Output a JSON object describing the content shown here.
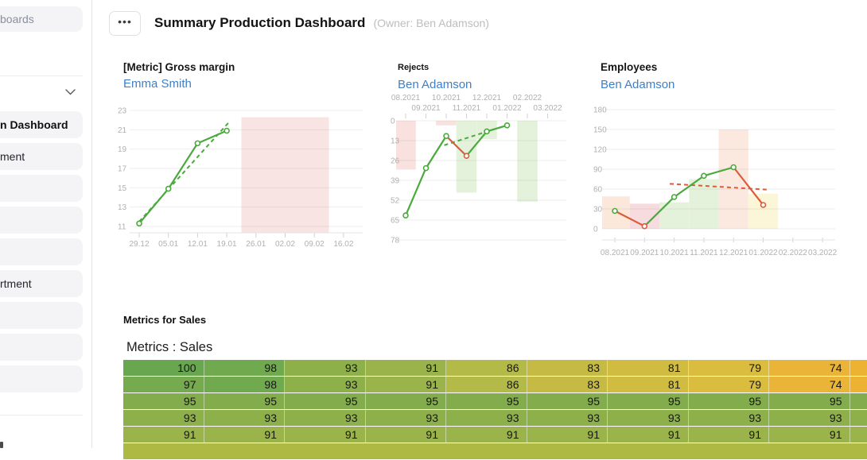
{
  "colors": {
    "accent_blue": "#3f7fc6",
    "line_green": "#4aaa3c",
    "line_red": "#dc5b3a",
    "grid": "#ebebeb",
    "axis_label": "#b0b0b0",
    "axis_line": "#e3e3e3"
  },
  "sidebar": {
    "search_label": "boards",
    "items": [
      {
        "label": "n Dashboard",
        "selected": true
      },
      {
        "label": "ment",
        "selected": false
      },
      {
        "label": "",
        "selected": false
      },
      {
        "label": "",
        "selected": false
      },
      {
        "label": "",
        "selected": false
      },
      {
        "label": "rtment",
        "selected": false
      },
      {
        "label": "",
        "selected": false
      },
      {
        "label": "",
        "selected": false
      },
      {
        "label": "",
        "selected": false
      }
    ]
  },
  "header": {
    "menu_button": "•••",
    "title": "Summary Production Dashboard",
    "owner": "(Owner: Ben Adamson)"
  },
  "chart_data": [
    {
      "type": "line",
      "title": "[Metric] Gross margin",
      "owner": "Emma Smith",
      "x_labels": [
        "29.12",
        "05.01",
        "12.01",
        "19.01",
        "26.01",
        "02.02",
        "09.02",
        "16.02"
      ],
      "y_ticks": [
        23,
        21,
        19,
        17,
        15,
        13,
        11
      ],
      "ylim": [
        11,
        23
      ],
      "y_inverted": false,
      "x_axis_position": "bottom",
      "grid": true,
      "points": [
        [
          0,
          11.3
        ],
        [
          1,
          14.9
        ],
        [
          2,
          19.6
        ],
        [
          3,
          20.9
        ]
      ],
      "segment_colors": [
        "green",
        "green",
        "green"
      ],
      "marker_colors": [
        "green",
        "green",
        "green",
        "green"
      ],
      "trend": {
        "from": [
          0,
          11.5
        ],
        "to": [
          3.05,
          21.7
        ],
        "color": "green",
        "dashed": true
      },
      "zones": [
        {
          "from_tick": 3.5,
          "to_tick": 6.5,
          "value_top": 22.3,
          "color": "#f9e4e4"
        }
      ]
    },
    {
      "type": "line",
      "title": "Rejects",
      "owner": "Ben Adamson",
      "x_labels": [
        "08.2021",
        "09.2021",
        "10.2021",
        "11.2021",
        "12.2021",
        "01.2022",
        "02.2022",
        "03.2022"
      ],
      "y_ticks": [
        0,
        13,
        26,
        39,
        52,
        65,
        78
      ],
      "ylim": [
        0,
        78
      ],
      "y_inverted": true,
      "x_axis_position": "top",
      "grid": true,
      "points": [
        [
          0,
          62
        ],
        [
          1,
          31
        ],
        [
          2,
          10
        ],
        [
          3,
          23
        ],
        [
          4,
          7
        ],
        [
          5,
          3
        ]
      ],
      "segment_colors": [
        "green",
        "green",
        "red",
        "green",
        "green"
      ],
      "marker_colors": [
        "green",
        "green",
        "green",
        "red",
        "green",
        "green"
      ],
      "trend": {
        "from": [
          1.9,
          16
        ],
        "to": [
          5.2,
          2
        ],
        "color": "green",
        "dashed": true
      },
      "zones": [
        {
          "band": 0,
          "value_top": 32,
          "color": "#f8e1df"
        },
        {
          "band": 2,
          "value_top": 3,
          "color": "#f8e1df"
        },
        {
          "band": 3,
          "value_top": 47,
          "color": "#e4f2dc"
        },
        {
          "band": 4,
          "value_top": 12,
          "color": "#e4f2dc"
        },
        {
          "band": 6,
          "value_top": 53,
          "color": "#e4f2dc"
        }
      ]
    },
    {
      "type": "line",
      "title": "Employees",
      "owner": "Ben Adamson",
      "x_labels": [
        "08.2021",
        "09.2021",
        "10.2021",
        "11.2021",
        "12.2021",
        "01.2022",
        "02.2022",
        "03.2022"
      ],
      "y_ticks": [
        180,
        150,
        120,
        90,
        60,
        30,
        0
      ],
      "ylim": [
        0,
        180
      ],
      "y_inverted": false,
      "x_axis_position": "bottom",
      "grid": true,
      "points": [
        [
          0,
          27
        ],
        [
          1,
          4
        ],
        [
          2,
          48
        ],
        [
          3,
          80
        ],
        [
          4,
          93
        ],
        [
          5,
          36
        ]
      ],
      "segment_colors": [
        "red",
        "green",
        "green",
        "green",
        "red"
      ],
      "marker_colors": [
        "green",
        "red",
        "green",
        "green",
        "green",
        "red"
      ],
      "trend": {
        "from": [
          1.85,
          68
        ],
        "to": [
          5.2,
          59
        ],
        "color": "red",
        "dashed": true
      },
      "zones": [
        {
          "band": 0,
          "value_top": 49,
          "color": "#fbe8da"
        },
        {
          "band": 1,
          "value_top": 38,
          "color": "#f7dcdf"
        },
        {
          "band": 2,
          "value_top": 40,
          "color": "#e5f2db"
        },
        {
          "band": 3,
          "value_top": 75,
          "color": "#e5f2db"
        },
        {
          "band": 4,
          "value_top": 150,
          "color": "#fbe9e0"
        },
        {
          "band": 5,
          "value_top": 53,
          "color": "#fbf6d7"
        }
      ]
    },
    {
      "type": "heatmap",
      "section_label": "Metrics for Sales",
      "title": "Metrics : Sales",
      "rows": [
        [
          100,
          98,
          93,
          91,
          86,
          83,
          81,
          79,
          74
        ],
        [
          97,
          98,
          93,
          91,
          86,
          83,
          81,
          79,
          74
        ],
        [
          95,
          95,
          95,
          95,
          95,
          95,
          95,
          95,
          95
        ],
        [
          93,
          93,
          93,
          93,
          93,
          93,
          93,
          93,
          93
        ],
        [
          91,
          91,
          91,
          91,
          91,
          91,
          91,
          91,
          91
        ]
      ],
      "value_colors": {
        "100": "#68a74f",
        "98": "#71a94e",
        "97": "#76aa4e",
        "95": "#83ad4c",
        "93": "#8eb04b",
        "91": "#9ab34a",
        "86": "#b4ba47",
        "83": "#c5bb44",
        "81": "#d0bc41",
        "79": "#dabc3e",
        "74": "#e9b438"
      },
      "partial_column_colors": [
        "#ecb231",
        "#ecb231",
        "#83ad4c",
        "#8eb04b",
        "#9ab34a"
      ],
      "partial_row_color": "#aeb944"
    }
  ]
}
